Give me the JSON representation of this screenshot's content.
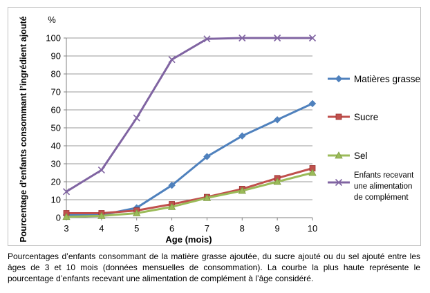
{
  "chart_data": {
    "type": "line",
    "x": [
      3,
      4,
      5,
      6,
      7,
      8,
      9,
      10
    ],
    "xlabel": "Age (mois)",
    "ylabel": "Pourcentage d’enfants consommant l’ingrédient ajouté",
    "yunit": "%",
    "ylim": [
      0,
      100
    ],
    "yticks": [
      0,
      10,
      20,
      30,
      40,
      50,
      60,
      70,
      80,
      90,
      100
    ],
    "grid": "horizontal",
    "legend_position": "right",
    "series": [
      {
        "name": "Matières grasses",
        "color": "#4f81bd",
        "marker": "diamond",
        "values": [
          1.5,
          1.5,
          5.5,
          18,
          34,
          45.5,
          54.5,
          63.5
        ]
      },
      {
        "name": "Sucre",
        "color": "#c0504d",
        "marker": "square",
        "values": [
          2.5,
          2.5,
          4,
          7.5,
          11.5,
          16,
          22,
          27.5
        ]
      },
      {
        "name": "Sel",
        "color": "#9bbb59",
        "marker": "triangle",
        "values": [
          0.5,
          1,
          2.5,
          6,
          11,
          15,
          20,
          25
        ]
      },
      {
        "name_lines": [
          "Enfants recevant",
          "une alimentation",
          "de complément"
        ],
        "color": "#8064a2",
        "marker": "x",
        "values": [
          14.5,
          26.5,
          55.5,
          88,
          99.5,
          100,
          100,
          100
        ]
      }
    ]
  },
  "caption": "Pourcentages d’enfants consommant de la matière grasse ajoutée, du sucre ajouté ou du sel ajouté entre les âges de 3 et 10 mois (données mensuelles de consommation). La courbe la plus haute représente le pourcentage d’enfants recevant une alimentation de complément à l’âge considéré."
}
